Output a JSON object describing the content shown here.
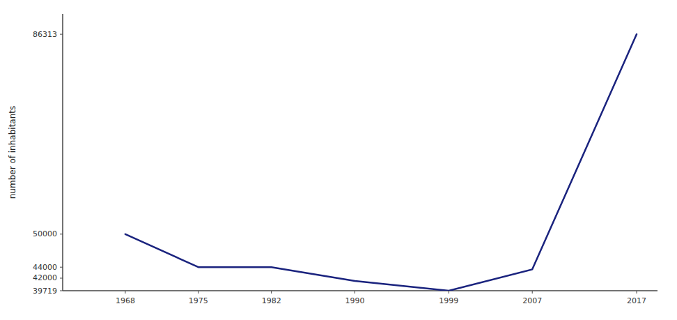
{
  "chart_data": {
    "type": "line",
    "x": [
      1968,
      1975,
      1982,
      1990,
      1999,
      2007,
      2017
    ],
    "values": [
      50000,
      44000,
      44000,
      41500,
      39719,
      43600,
      86313
    ],
    "color": "#1a237e",
    "xlim": [
      1962,
      2019
    ],
    "xticks": [
      1968,
      1975,
      1982,
      1990,
      1999,
      2007,
      2017
    ],
    "ylim": [
      39719,
      90000
    ],
    "yticks": [
      39719,
      42000,
      44000,
      50000,
      86313
    ],
    "y_label": "number of inhabitants",
    "grid": false
  }
}
